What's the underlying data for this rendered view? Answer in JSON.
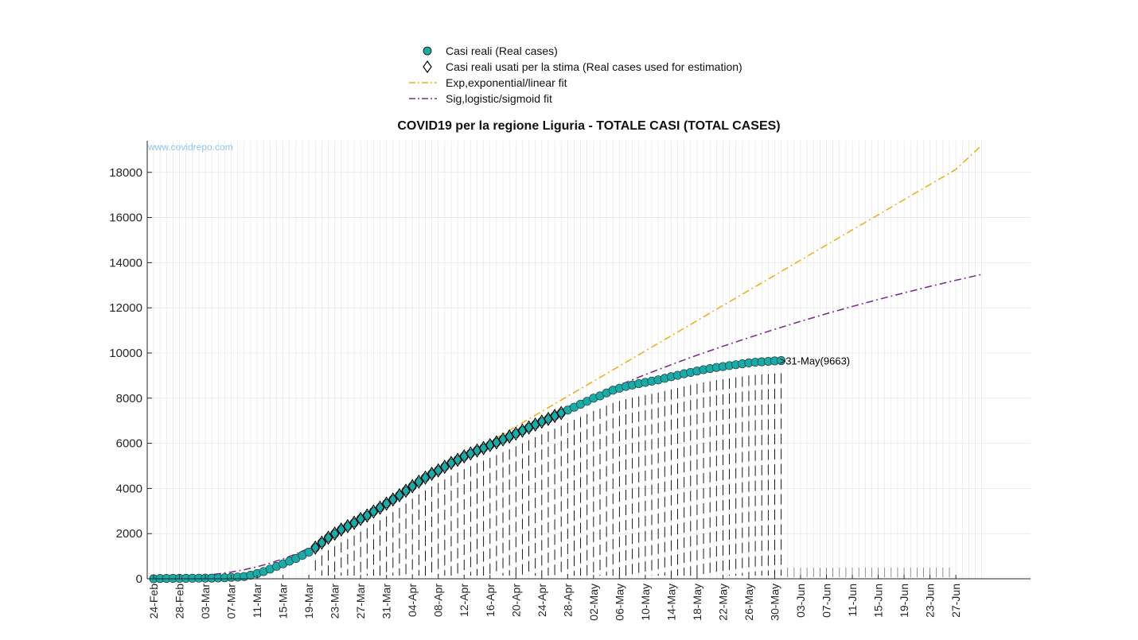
{
  "legend": {
    "items": [
      {
        "label": "Casi reali (Real cases)",
        "symbol": "circle",
        "color": "#1aaba8"
      },
      {
        "label": "Casi reali usati per la stima (Real cases used for estimation)",
        "symbol": "diamond",
        "color": "#000000"
      },
      {
        "label": "Exp,exponential/linear fit",
        "symbol": "dashdot",
        "color": "#edb120"
      },
      {
        "label": "Sig,logistic/sigmoid fit",
        "symbol": "dashdot",
        "color": "#7e2f8e"
      }
    ]
  },
  "watermark": "www.covidrepo.com",
  "chart_data": {
    "type": "line",
    "title": "COVID19 per la regione Liguria - TOTALE CASI (TOTAL CASES)",
    "xlabel": "",
    "ylabel": "",
    "ylim": [
      0,
      19400
    ],
    "y_ticks": [
      0,
      2000,
      4000,
      6000,
      8000,
      10000,
      12000,
      14000,
      16000,
      18000
    ],
    "x_start_date": "24-Feb",
    "x_range_days": [
      0,
      128
    ],
    "x_ticks": [
      {
        "day": 0,
        "label": "24-Feb"
      },
      {
        "day": 4,
        "label": "28-Feb"
      },
      {
        "day": 8,
        "label": "03-Mar"
      },
      {
        "day": 12,
        "label": "07-Mar"
      },
      {
        "day": 16,
        "label": "11-Mar"
      },
      {
        "day": 20,
        "label": "15-Mar"
      },
      {
        "day": 24,
        "label": "19-Mar"
      },
      {
        "day": 28,
        "label": "23-Mar"
      },
      {
        "day": 32,
        "label": "27-Mar"
      },
      {
        "day": 36,
        "label": "31-Mar"
      },
      {
        "day": 40,
        "label": "04-Apr"
      },
      {
        "day": 44,
        "label": "08-Apr"
      },
      {
        "day": 48,
        "label": "12-Apr"
      },
      {
        "day": 52,
        "label": "16-Apr"
      },
      {
        "day": 56,
        "label": "20-Apr"
      },
      {
        "day": 60,
        "label": "24-Apr"
      },
      {
        "day": 64,
        "label": "28-Apr"
      },
      {
        "day": 68,
        "label": "02-May"
      },
      {
        "day": 72,
        "label": "06-May"
      },
      {
        "day": 76,
        "label": "10-May"
      },
      {
        "day": 80,
        "label": "14-May"
      },
      {
        "day": 84,
        "label": "18-May"
      },
      {
        "day": 88,
        "label": "22-May"
      },
      {
        "day": 92,
        "label": "26-May"
      },
      {
        "day": 96,
        "label": "30-May"
      },
      {
        "day": 100,
        "label": "03-Jun"
      },
      {
        "day": 104,
        "label": "07-Jun"
      },
      {
        "day": 108,
        "label": "11-Jun"
      },
      {
        "day": 112,
        "label": "15-Jun"
      },
      {
        "day": 116,
        "label": "19-Jun"
      },
      {
        "day": 120,
        "label": "23-Jun"
      },
      {
        "day": 124,
        "label": "27-Jun"
      }
    ],
    "grid": true,
    "legend_position": "top",
    "annotation": {
      "day": 97,
      "value": 9663,
      "text": ">31-May(9663)"
    },
    "series": [
      {
        "name": "Casi reali (Real cases)",
        "kind": "markers-circle",
        "color": "#1aaba8",
        "x": [
          0,
          1,
          2,
          3,
          4,
          5,
          6,
          7,
          8,
          9,
          10,
          11,
          12,
          13,
          14,
          15,
          16,
          17,
          18,
          19,
          20,
          21,
          22,
          23,
          24,
          25,
          26,
          27,
          28,
          29,
          30,
          31,
          32,
          33,
          34,
          35,
          36,
          37,
          38,
          39,
          40,
          41,
          42,
          43,
          44,
          45,
          46,
          47,
          48,
          49,
          50,
          51,
          52,
          53,
          54,
          55,
          56,
          57,
          58,
          59,
          60,
          61,
          62,
          63,
          64,
          65,
          66,
          67,
          68,
          69,
          70,
          71,
          72,
          73,
          74,
          75,
          76,
          77,
          78,
          79,
          80,
          81,
          82,
          83,
          84,
          85,
          86,
          87,
          88,
          89,
          90,
          91,
          92,
          93,
          94,
          95,
          96,
          97
        ],
        "y": [
          2,
          11,
          15,
          19,
          19,
          20,
          25,
          26,
          27,
          28,
          35,
          45,
          65,
          78,
          100,
          160,
          230,
          320,
          430,
          550,
          660,
          780,
          900,
          1040,
          1180,
          1380,
          1600,
          1820,
          2000,
          2180,
          2330,
          2480,
          2650,
          2800,
          2980,
          3150,
          3330,
          3510,
          3700,
          3900,
          4100,
          4300,
          4480,
          4650,
          4800,
          4960,
          5130,
          5270,
          5420,
          5550,
          5680,
          5790,
          5920,
          6040,
          6170,
          6300,
          6430,
          6560,
          6700,
          6830,
          6960,
          7080,
          7210,
          7340,
          7470,
          7600,
          7730,
          7860,
          8000,
          8100,
          8230,
          8350,
          8440,
          8520,
          8580,
          8640,
          8700,
          8750,
          8810,
          8880,
          8950,
          9010,
          9080,
          9140,
          9200,
          9260,
          9310,
          9360,
          9400,
          9440,
          9480,
          9520,
          9560,
          9590,
          9610,
          9630,
          9650,
          9663
        ]
      },
      {
        "name": "Casi reali usati per la stima (Real cases used for estimation)",
        "kind": "markers-diamond",
        "color": "#000000",
        "x": [
          25,
          26,
          27,
          28,
          29,
          30,
          31,
          32,
          33,
          34,
          35,
          36,
          37,
          38,
          39,
          40,
          41,
          42,
          43,
          44,
          45,
          46,
          47,
          48,
          49,
          50,
          51,
          52,
          53,
          54,
          55,
          56,
          57,
          58,
          59,
          60,
          61,
          62,
          63
        ],
        "y": [
          1380,
          1600,
          1820,
          2000,
          2180,
          2330,
          2480,
          2650,
          2800,
          2980,
          3150,
          3330,
          3510,
          3700,
          3900,
          4100,
          4300,
          4480,
          4650,
          4800,
          4960,
          5130,
          5270,
          5420,
          5550,
          5680,
          5790,
          5920,
          6040,
          6170,
          6300,
          6430,
          6560,
          6700,
          6830,
          6960,
          7080,
          7210,
          7340
        ]
      },
      {
        "name": "Exp,exponential/linear fit",
        "kind": "dashdot",
        "color": "#edb120",
        "x": [
          14,
          16,
          18,
          20,
          22,
          24,
          26,
          28,
          30,
          32,
          36,
          40,
          44,
          48,
          52,
          56,
          60,
          64,
          68,
          72,
          76,
          80,
          84,
          88,
          92,
          96,
          100,
          104,
          108,
          112,
          116,
          120,
          124,
          128
        ],
        "y": [
          50,
          180,
          380,
          650,
          960,
          1300,
          1690,
          2040,
          2380,
          2720,
          3390,
          4060,
          4730,
          5400,
          6070,
          6740,
          7410,
          8080,
          8750,
          9420,
          10090,
          10760,
          11430,
          12100,
          12770,
          13440,
          14110,
          14780,
          15450,
          16120,
          16790,
          17460,
          18130,
          19200
        ]
      },
      {
        "name": "Sig,logistic/sigmoid fit",
        "kind": "dashdot",
        "color": "#7e2f8e",
        "x": [
          0,
          4,
          8,
          10,
          12,
          14,
          16,
          18,
          20,
          22,
          24,
          26,
          28,
          30,
          32,
          36,
          40,
          44,
          48,
          52,
          56,
          60,
          64,
          68,
          72,
          76,
          80,
          84,
          88,
          92,
          96,
          100,
          104,
          108,
          112,
          116,
          120,
          124,
          128
        ],
        "y": [
          30,
          70,
          160,
          220,
          300,
          400,
          530,
          690,
          880,
          1100,
          1360,
          1650,
          1960,
          2290,
          2640,
          3350,
          4050,
          4720,
          5350,
          5950,
          6520,
          7070,
          7600,
          8100,
          8580,
          9040,
          9480,
          9900,
          10300,
          10680,
          11050,
          11400,
          11740,
          12060,
          12370,
          12660,
          12950,
          13220,
          13480
        ]
      }
    ]
  }
}
